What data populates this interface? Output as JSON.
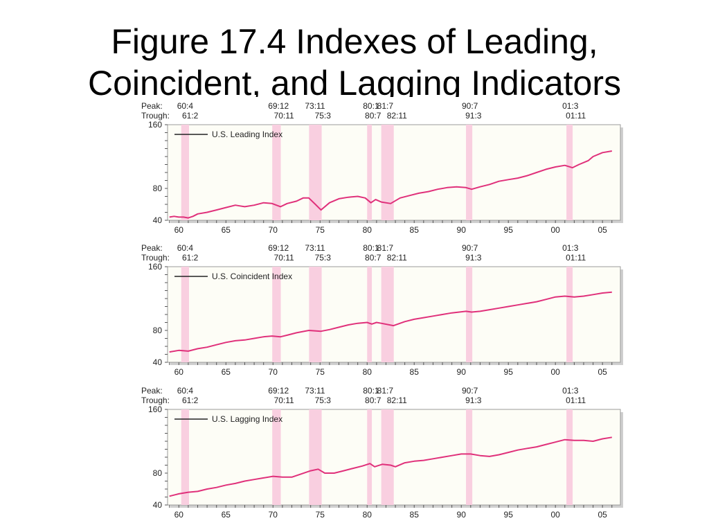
{
  "title": "Figure 17.4 Indexes of Leading,\nCoincident, and Lagging Indicators",
  "peak_label": "Peak:",
  "trough_label": "Trough:",
  "peaks": [
    "60:4",
    "69:12",
    "73:11",
    "80:1",
    "81:7",
    "90:7",
    "01:3"
  ],
  "troughs": [
    "61:2",
    "70:11",
    "75:3",
    "80:7",
    "82:11",
    "91:3",
    "01:11"
  ],
  "colors": {
    "series": "#e0307a",
    "recession": "#f9cfe0",
    "plot_bg": "#fdfdf6",
    "legend_line": "#222222"
  },
  "chart_data": [
    {
      "type": "line",
      "legend": "U.S. Leading Index",
      "legend_position": "top-left",
      "ylim": [
        40,
        160
      ],
      "yticks": [
        "40",
        "80",
        "160"
      ],
      "xticks": [
        "60",
        "65",
        "70",
        "75",
        "80",
        "85",
        "90",
        "95",
        "00",
        "05"
      ],
      "recessions": [
        [
          1960.25,
          1961.08
        ],
        [
          1969.92,
          1970.83
        ],
        [
          1973.83,
          1975.17
        ],
        [
          1980.0,
          1980.5
        ],
        [
          1981.5,
          1982.83
        ],
        [
          1990.5,
          1991.17
        ],
        [
          2001.17,
          2001.83
        ]
      ],
      "x": [
        1959.0,
        1959.5,
        1960.0,
        1960.5,
        1961.0,
        1961.5,
        1962.0,
        1963.0,
        1964.0,
        1965.0,
        1966.0,
        1966.5,
        1967.0,
        1968.0,
        1969.0,
        1969.9,
        1970.8,
        1971.5,
        1972.5,
        1973.2,
        1973.8,
        1974.5,
        1975.1,
        1976.0,
        1977.0,
        1978.0,
        1979.0,
        1979.8,
        1980.4,
        1980.9,
        1981.5,
        1982.5,
        1983.5,
        1984.5,
        1985.5,
        1986.5,
        1987.5,
        1988.5,
        1989.5,
        1990.5,
        1991.1,
        1992.0,
        1993.0,
        1994.0,
        1995.0,
        1996.0,
        1997.0,
        1998.0,
        1999.0,
        2000.0,
        2001.0,
        2001.8,
        2002.5,
        2003.5,
        2004.0,
        2005.0,
        2006.0
      ],
      "y": [
        44,
        45,
        44,
        44,
        43,
        45,
        48,
        50,
        53,
        56,
        59,
        58,
        57,
        59,
        62,
        61,
        57,
        61,
        64,
        68,
        68,
        60,
        53,
        62,
        67,
        69,
        70,
        68,
        62,
        66,
        63,
        61,
        68,
        71,
        74,
        76,
        79,
        81,
        82,
        81,
        79,
        82,
        85,
        89,
        91,
        93,
        96,
        100,
        104,
        107,
        109,
        106,
        110,
        115,
        120,
        125,
        127
      ]
    },
    {
      "type": "line",
      "legend": "U.S. Coincident Index",
      "legend_position": "top-left",
      "ylim": [
        40,
        160
      ],
      "yticks": [
        "40",
        "80",
        "160"
      ],
      "xticks": [
        "60",
        "65",
        "70",
        "75",
        "80",
        "85",
        "90",
        "95",
        "00",
        "05"
      ],
      "recessions": [
        [
          1960.25,
          1961.08
        ],
        [
          1969.92,
          1970.83
        ],
        [
          1973.83,
          1975.17
        ],
        [
          1980.0,
          1980.5
        ],
        [
          1981.5,
          1982.83
        ],
        [
          1990.5,
          1991.17
        ],
        [
          2001.17,
          2001.83
        ]
      ],
      "x": [
        1959.0,
        1960.0,
        1961.0,
        1962.0,
        1963.0,
        1964.0,
        1965.0,
        1966.0,
        1967.0,
        1968.0,
        1969.0,
        1969.9,
        1970.8,
        1971.5,
        1972.5,
        1973.8,
        1975.1,
        1976.0,
        1977.0,
        1978.0,
        1979.0,
        1980.0,
        1980.5,
        1981.0,
        1981.5,
        1982.8,
        1984.0,
        1985.0,
        1986.0,
        1987.0,
        1988.0,
        1989.0,
        1990.5,
        1991.1,
        1992.0,
        1993.0,
        1994.0,
        1995.0,
        1996.0,
        1997.0,
        1998.0,
        1999.0,
        2000.0,
        2001.0,
        2002.0,
        2003.0,
        2004.0,
        2005.0,
        2006.0
      ],
      "y": [
        53,
        55,
        54,
        57,
        59,
        62,
        65,
        67,
        68,
        70,
        72,
        73,
        72,
        74,
        77,
        80,
        79,
        81,
        84,
        87,
        89,
        90,
        88,
        90,
        89,
        86,
        91,
        94,
        96,
        98,
        100,
        102,
        104,
        103,
        104,
        106,
        108,
        110,
        112,
        114,
        116,
        119,
        122,
        123,
        122,
        123,
        125,
        127,
        128
      ]
    },
    {
      "type": "line",
      "legend": "U.S. Lagging Index",
      "legend_position": "top-left",
      "ylim": [
        40,
        160
      ],
      "yticks": [
        "40",
        "80",
        "160"
      ],
      "xticks": [
        "60",
        "65",
        "70",
        "75",
        "80",
        "85",
        "90",
        "95",
        "00",
        "05"
      ],
      "recessions": [
        [
          1960.25,
          1961.08
        ],
        [
          1969.92,
          1970.83
        ],
        [
          1973.83,
          1975.17
        ],
        [
          1980.0,
          1980.5
        ],
        [
          1981.5,
          1982.83
        ],
        [
          1990.5,
          1991.17
        ],
        [
          2001.17,
          2001.83
        ]
      ],
      "x": [
        1959.0,
        1960.0,
        1961.0,
        1962.0,
        1963.0,
        1964.0,
        1965.0,
        1966.0,
        1967.0,
        1968.0,
        1969.0,
        1970.0,
        1971.0,
        1972.0,
        1973.0,
        1974.0,
        1974.8,
        1975.5,
        1976.5,
        1977.5,
        1978.5,
        1979.5,
        1980.3,
        1980.8,
        1981.6,
        1982.5,
        1983.0,
        1984.0,
        1985.0,
        1986.0,
        1987.0,
        1988.0,
        1989.0,
        1990.0,
        1991.0,
        1992.0,
        1993.0,
        1994.0,
        1995.0,
        1996.0,
        1997.0,
        1998.0,
        1999.0,
        2000.0,
        2001.0,
        2002.0,
        2003.0,
        2004.0,
        2005.0,
        2006.0
      ],
      "y": [
        51,
        54,
        56,
        57,
        60,
        62,
        65,
        67,
        70,
        72,
        74,
        76,
        75,
        75,
        79,
        83,
        85,
        80,
        80,
        83,
        86,
        89,
        92,
        88,
        91,
        90,
        88,
        93,
        95,
        96,
        98,
        100,
        102,
        104,
        104,
        102,
        101,
        103,
        106,
        109,
        111,
        113,
        116,
        119,
        122,
        121,
        121,
        120,
        123,
        125
      ]
    }
  ]
}
